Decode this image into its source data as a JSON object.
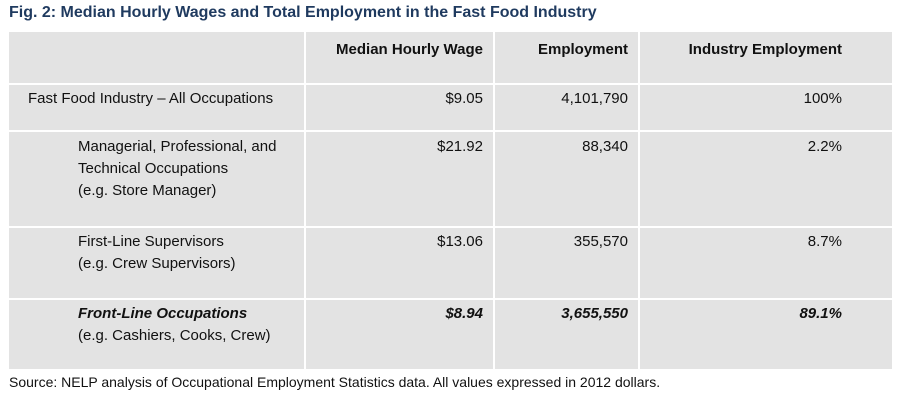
{
  "title": "Fig. 2: Median Hourly Wages and Total Employment in the Fast Food Industry",
  "source": "Source: NELP analysis of Occupational Employment Statistics data. All values expressed in 2012 dollars.",
  "chart_data": {
    "type": "table",
    "columns": [
      "",
      "Median Hourly Wage",
      "Employment",
      "Industry Employment"
    ],
    "rows": [
      {
        "label_lines": [
          "Fast Food Industry – All Occupations"
        ],
        "wage": "$9.05",
        "employment": "4,101,790",
        "share": "100%"
      },
      {
        "label_lines": [
          "Managerial, Professional, and",
          "Technical Occupations",
          "(e.g. Store Manager)"
        ],
        "wage": "$21.92",
        "employment": "88,340",
        "share": "2.2%"
      },
      {
        "label_lines": [
          "First-Line Supervisors",
          "(e.g. Crew Supervisors)"
        ],
        "wage": "$13.06",
        "employment": "355,570",
        "share": "8.7%"
      },
      {
        "label_lines": [
          "Front-Line Occupations",
          "(e.g. Cashiers, Cooks, Crew)"
        ],
        "wage": "$8.94",
        "employment": "3,655,550",
        "share": "89.1%"
      }
    ]
  }
}
